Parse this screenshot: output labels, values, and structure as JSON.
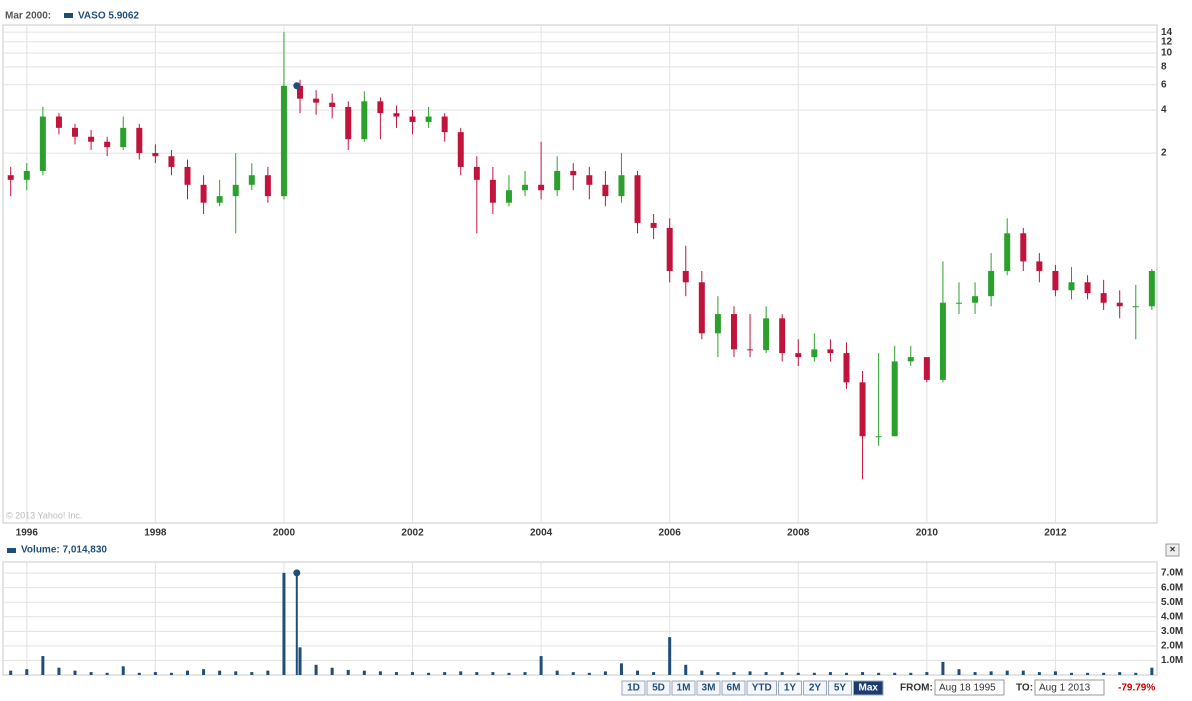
{
  "chart_data": {
    "type": "candlestick",
    "header_date": "Mar 2000:",
    "legend_label": "VASO 5.9062",
    "volume_label": "Volume: 7,014,830",
    "up_color": "#2ca02c",
    "down_color": "#c0143c",
    "volume_color": "#1f4e79",
    "grid": true,
    "log_scale": true,
    "xlim": [
      1995.63,
      2013.58
    ],
    "xticks": [
      1996,
      1998,
      2000,
      2002,
      2004,
      2006,
      2008,
      2010,
      2012
    ],
    "ylim": [
      0.0052,
      15.7
    ],
    "yticks": [
      2,
      4,
      6,
      8,
      10,
      12,
      14
    ],
    "volume_ylim": [
      0,
      7760000
    ],
    "volume_yticks": [
      {
        "value": 1000000,
        "label": "1.0M"
      },
      {
        "value": 2000000,
        "label": "2.0M"
      },
      {
        "value": 3000000,
        "label": "3.0M"
      },
      {
        "value": 4000000,
        "label": "4.0M"
      },
      {
        "value": 5000000,
        "label": "5.0M"
      },
      {
        "value": 6000000,
        "label": "6.0M"
      },
      {
        "value": 7000000,
        "label": "7.0M"
      }
    ],
    "highlight": {
      "x": 2000.2,
      "price": 5.9062,
      "volume": 7014830
    },
    "x": [
      1995.75,
      1996,
      1996.25,
      1996.5,
      1996.75,
      1997,
      1997.25,
      1997.5,
      1997.75,
      1998,
      1998.25,
      1998.5,
      1998.75,
      1999,
      1999.25,
      1999.5,
      1999.75,
      2000,
      2000.25,
      2000.5,
      2000.75,
      2001,
      2001.25,
      2001.5,
      2001.75,
      2002,
      2002.25,
      2002.5,
      2002.75,
      2003,
      2003.25,
      2003.5,
      2003.75,
      2004,
      2004.25,
      2004.5,
      2004.75,
      2005,
      2005.25,
      2005.5,
      2005.75,
      2006,
      2006.25,
      2006.5,
      2006.75,
      2007,
      2007.25,
      2007.5,
      2007.75,
      2008,
      2008.25,
      2008.5,
      2008.75,
      2009,
      2009.25,
      2009.5,
      2009.75,
      2010,
      2010.25,
      2010.5,
      2010.75,
      2011,
      2011.25,
      2011.5,
      2011.75,
      2012,
      2012.25,
      2012.5,
      2012.75,
      2013,
      2013.25,
      2013.5
    ],
    "open": [
      1.4,
      1.3,
      1.5,
      3.6,
      3.0,
      2.6,
      2.4,
      2.2,
      3.0,
      2.0,
      1.9,
      1.6,
      1.2,
      0.9,
      1.0,
      1.2,
      1.4,
      1.0,
      5.9,
      4.8,
      4.5,
      4.2,
      2.5,
      4.6,
      3.8,
      3.6,
      3.3,
      3.6,
      2.8,
      1.6,
      1.3,
      0.9,
      1.1,
      1.2,
      1.1,
      1.5,
      1.4,
      1.2,
      1.0,
      1.4,
      0.65,
      0.6,
      0.3,
      0.25,
      0.11,
      0.15,
      0.085,
      0.084,
      0.14,
      0.08,
      0.075,
      0.085,
      0.08,
      0.05,
      0.021,
      0.021,
      0.07,
      0.075,
      0.052,
      0.18,
      0.18,
      0.2,
      0.3,
      0.55,
      0.35,
      0.3,
      0.22,
      0.25,
      0.21,
      0.18,
      0.17,
      0.17
    ],
    "high": [
      1.6,
      1.7,
      4.2,
      3.8,
      3.2,
      2.9,
      2.6,
      3.6,
      3.2,
      2.3,
      2.1,
      1.8,
      1.4,
      1.3,
      2.0,
      1.7,
      1.6,
      14,
      6.5,
      5.5,
      5.2,
      4.6,
      5.4,
      4.9,
      4.3,
      4.0,
      4.2,
      3.8,
      3.0,
      1.9,
      1.6,
      1.4,
      1.5,
      2.4,
      1.9,
      1.7,
      1.6,
      1.5,
      2.0,
      1.5,
      0.75,
      0.7,
      0.45,
      0.3,
      0.2,
      0.17,
      0.15,
      0.17,
      0.15,
      0.1,
      0.11,
      0.1,
      0.095,
      0.06,
      0.08,
      0.09,
      0.09,
      0.075,
      0.35,
      0.25,
      0.25,
      0.4,
      0.7,
      0.6,
      0.4,
      0.33,
      0.32,
      0.28,
      0.26,
      0.22,
      0.24,
      0.31
    ],
    "low": [
      1.0,
      1.1,
      1.4,
      2.7,
      2.3,
      2.1,
      1.9,
      2.1,
      1.8,
      1.7,
      1.4,
      0.95,
      0.75,
      0.85,
      0.55,
      1.1,
      0.9,
      0.95,
      3.8,
      3.7,
      3.5,
      2.1,
      2.4,
      2.5,
      3.0,
      2.7,
      3.0,
      2.4,
      1.4,
      0.55,
      0.75,
      0.85,
      1.0,
      0.95,
      1.0,
      1.1,
      0.95,
      0.85,
      0.9,
      0.55,
      0.5,
      0.25,
      0.2,
      0.1,
      0.075,
      0.075,
      0.075,
      0.08,
      0.07,
      0.065,
      0.07,
      0.07,
      0.045,
      0.0105,
      0.018,
      0.021,
      0.065,
      0.05,
      0.05,
      0.15,
      0.15,
      0.17,
      0.28,
      0.3,
      0.25,
      0.2,
      0.19,
      0.19,
      0.16,
      0.14,
      0.1,
      0.16
    ],
    "close": [
      1.3,
      1.5,
      3.6,
      3.0,
      2.6,
      2.4,
      2.2,
      3.0,
      2.0,
      1.9,
      1.6,
      1.2,
      0.9,
      1.0,
      1.2,
      1.4,
      1.0,
      5.9,
      4.8,
      4.5,
      4.2,
      2.5,
      4.6,
      3.8,
      3.6,
      3.3,
      3.6,
      2.8,
      1.6,
      1.3,
      0.9,
      1.1,
      1.2,
      1.1,
      1.5,
      1.4,
      1.2,
      1.0,
      1.4,
      0.65,
      0.6,
      0.3,
      0.25,
      0.11,
      0.15,
      0.085,
      0.084,
      0.14,
      0.08,
      0.075,
      0.085,
      0.08,
      0.05,
      0.021,
      0.021,
      0.07,
      0.075,
      0.052,
      0.18,
      0.18,
      0.2,
      0.3,
      0.55,
      0.35,
      0.3,
      0.22,
      0.25,
      0.21,
      0.18,
      0.17,
      0.17,
      0.3
    ],
    "volume": [
      300000,
      400000,
      1300000,
      500000,
      300000,
      200000,
      150000,
      600000,
      150000,
      200000,
      150000,
      300000,
      400000,
      300000,
      250000,
      200000,
      300000,
      7014830,
      1900000,
      700000,
      500000,
      350000,
      300000,
      250000,
      200000,
      200000,
      150000,
      200000,
      250000,
      200000,
      200000,
      150000,
      200000,
      1300000,
      300000,
      200000,
      150000,
      250000,
      800000,
      300000,
      200000,
      2600000,
      700000,
      300000,
      200000,
      200000,
      250000,
      200000,
      200000,
      150000,
      150000,
      200000,
      150000,
      200000,
      150000,
      150000,
      150000,
      200000,
      900000,
      400000,
      200000,
      250000,
      300000,
      300000,
      200000,
      250000,
      150000,
      150000,
      150000,
      200000,
      150000,
      500000
    ]
  },
  "ui": {
    "copyright": "© 2013 Yahoo! Inc.",
    "close_button": "×",
    "range_buttons": [
      "1D",
      "5D",
      "1M",
      "3M",
      "6M",
      "YTD",
      "1Y",
      "2Y",
      "5Y",
      "Max"
    ],
    "active_range": "Max",
    "from_label": "FROM:",
    "from": "Aug 18 1995",
    "to_label": "TO:",
    "to": "Aug 1 2013",
    "change": "-79.79%",
    "change_color": "#cc0000"
  }
}
